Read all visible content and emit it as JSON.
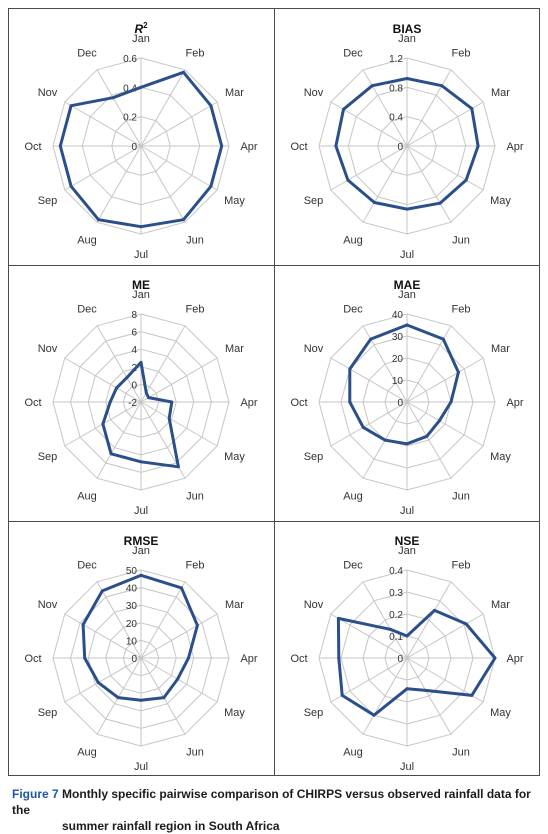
{
  "chart_data": [
    {
      "type": "radar",
      "title": "R2",
      "categories": [
        "Jan",
        "Feb",
        "Mar",
        "Apr",
        "May",
        "Jun",
        "Jul",
        "Aug",
        "Sep",
        "Oct",
        "Nov",
        "Dec"
      ],
      "rlim": [
        0,
        0.6
      ],
      "ticks": [
        0,
        0.2,
        0.4,
        0.6
      ],
      "tick_labels": [
        "0",
        "0.2",
        "0.4",
        "0.6"
      ],
      "values": [
        0.4,
        0.58,
        0.55,
        0.55,
        0.55,
        0.58,
        0.55,
        0.58,
        0.55,
        0.55,
        0.55,
        0.38
      ],
      "grid": true
    },
    {
      "type": "radar",
      "title": "BIAS",
      "categories": [
        "Jan",
        "Feb",
        "Mar",
        "Apr",
        "May",
        "Jun",
        "Jul",
        "Aug",
        "Sep",
        "Oct",
        "Nov",
        "Dec"
      ],
      "rlim": [
        0,
        1.2
      ],
      "ticks": [
        0,
        0.4,
        0.8,
        1.2
      ],
      "tick_labels": [
        "0",
        "0.4",
        "0.8",
        "1.2"
      ],
      "values": [
        0.92,
        0.95,
        1.02,
        0.97,
        0.93,
        0.9,
        0.86,
        0.89,
        0.93,
        0.97,
        1.0,
        0.95
      ],
      "grid": true
    },
    {
      "type": "radar",
      "title": "ME",
      "categories": [
        "Jan",
        "Feb",
        "Mar",
        "Apr",
        "May",
        "Jun",
        "Jul",
        "Aug",
        "Sep",
        "Oct",
        "Nov",
        "Dec"
      ],
      "rlim": [
        -2,
        8
      ],
      "ticks": [
        -2,
        0,
        2,
        4,
        6,
        8
      ],
      "tick_labels": [
        "-2",
        "0",
        "2",
        "4",
        "6",
        "8"
      ],
      "values": [
        2.5,
        -0.8,
        -1.0,
        1.5,
        1.7,
        6.5,
        4.8,
        4.8,
        3.0,
        1.5,
        1.2,
        1.2
      ],
      "grid": true
    },
    {
      "type": "radar",
      "title": "MAE",
      "categories": [
        "Jan",
        "Feb",
        "Mar",
        "Apr",
        "May",
        "Jun",
        "Jul",
        "Aug",
        "Sep",
        "Oct",
        "Nov",
        "Dec"
      ],
      "rlim": [
        0,
        40
      ],
      "ticks": [
        0,
        10,
        20,
        30,
        40
      ],
      "tick_labels": [
        "0",
        "10",
        "20",
        "30",
        "40"
      ],
      "values": [
        35,
        33,
        27,
        20,
        17,
        18,
        19,
        20,
        23,
        26,
        30,
        33
      ],
      "grid": true
    },
    {
      "type": "radar",
      "title": "RMSE",
      "categories": [
        "Jan",
        "Feb",
        "Mar",
        "Apr",
        "May",
        "Jun",
        "Jul",
        "Aug",
        "Sep",
        "Oct",
        "Nov",
        "Dec"
      ],
      "rlim": [
        0,
        50
      ],
      "ticks": [
        0,
        10,
        20,
        30,
        40,
        50
      ],
      "tick_labels": [
        "0",
        "10",
        "20",
        "30",
        "40",
        "50"
      ],
      "values": [
        47,
        46,
        37,
        27,
        24,
        26,
        24,
        26,
        28,
        32,
        38,
        44
      ],
      "grid": true
    },
    {
      "type": "radar",
      "title": "NSE",
      "categories": [
        "Jan",
        "Feb",
        "Mar",
        "Apr",
        "May",
        "Jun",
        "Jul",
        "Aug",
        "Sep",
        "Oct",
        "Nov",
        "Dec"
      ],
      "rlim": [
        0,
        0.4
      ],
      "ticks": [
        0,
        0.1,
        0.2,
        0.3,
        0.4
      ],
      "tick_labels": [
        "0",
        "0.1",
        "0.2",
        "0.3",
        "0.4"
      ],
      "values": [
        0.1,
        0.25,
        0.31,
        0.4,
        0.34,
        0.17,
        0.14,
        0.3,
        0.34,
        0.31,
        0.36,
        0.15
      ],
      "grid": true
    }
  ],
  "caption": {
    "label": "Figure 7",
    "text": "Monthly specific pairwise comparison of CHIRPS versus observed rainfall data for the",
    "text2": "summer rainfall region in South Africa"
  },
  "colors": {
    "series": "#2a4f8a",
    "grid": "#c6c6c6",
    "text": "#333333",
    "border": "#4a4a4a",
    "caption_label": "#1f57a7"
  }
}
